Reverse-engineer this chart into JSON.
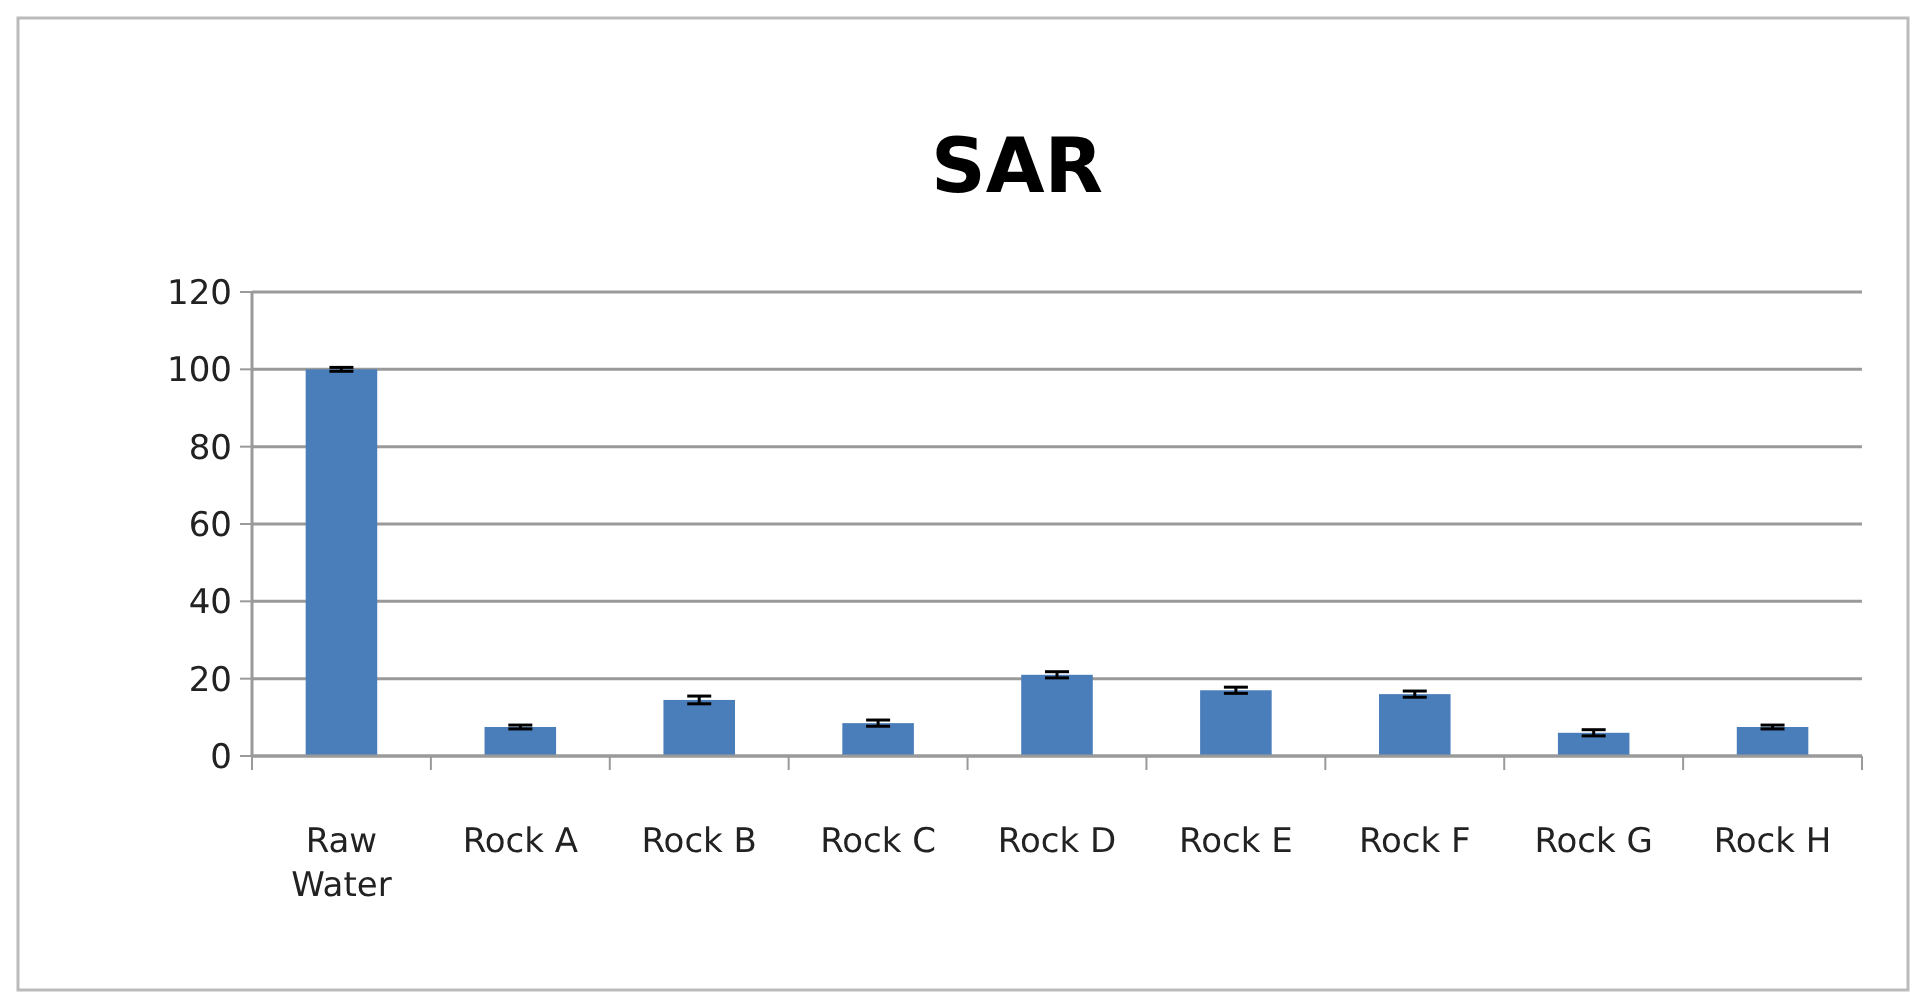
{
  "chart_data": {
    "type": "bar",
    "title": "SAR",
    "categories": [
      "Raw Water",
      "Rock A",
      "Rock B",
      "Rock C",
      "Rock D",
      "Rock E",
      "Rock F",
      "Rock G",
      "Rock H"
    ],
    "values": [
      100,
      7.5,
      14.5,
      8.5,
      21,
      17,
      16,
      6,
      7.5
    ],
    "errors": [
      0.5,
      0.5,
      1,
      0.8,
      0.8,
      0.8,
      0.8,
      0.8,
      0.5
    ],
    "color": "#4a7ebb",
    "ylim": [
      0,
      120
    ],
    "yticks": [
      0,
      20,
      40,
      60,
      80,
      100,
      120
    ],
    "grid": "y"
  }
}
